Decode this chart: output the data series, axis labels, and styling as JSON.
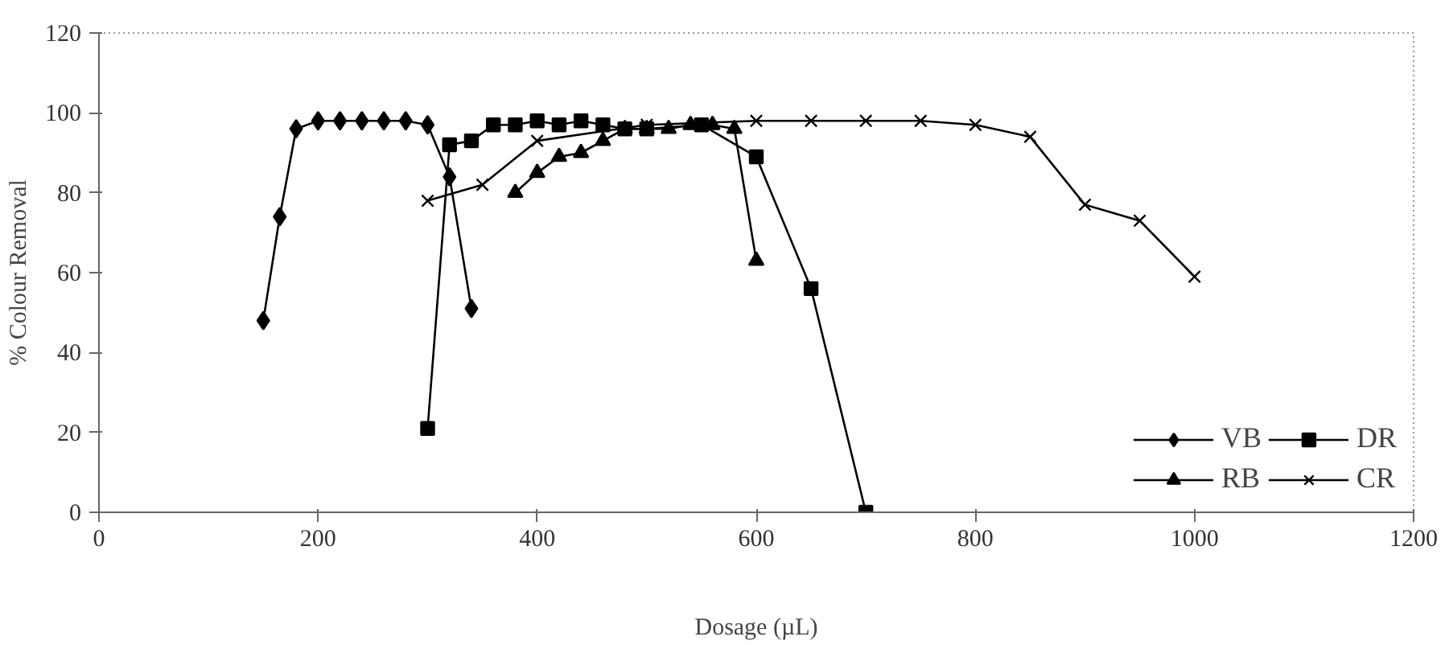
{
  "chart_data": {
    "type": "line",
    "xlabel": "Dosage (µL)",
    "ylabel": "% Colour Removal",
    "xlim": [
      0,
      1200
    ],
    "xticks": [
      0,
      200,
      400,
      600,
      800,
      1000,
      1200
    ],
    "ylim": [
      0,
      120
    ],
    "yticks": [
      0,
      20,
      40,
      60,
      80,
      100,
      120
    ],
    "grid": false,
    "legend": "bottom right",
    "line_style": "solid",
    "series": [
      {
        "name": "VB",
        "color": "#000000",
        "marker": "diamond",
        "x": [
          150,
          165,
          180,
          200,
          220,
          240,
          260,
          280,
          300,
          320,
          340
        ],
        "values": [
          48,
          74,
          96,
          98,
          98,
          98,
          98,
          98,
          97,
          84,
          51
        ]
      },
      {
        "name": "DR",
        "color": "#000000",
        "marker": "square",
        "x": [
          300,
          320,
          340,
          360,
          380,
          400,
          420,
          440,
          460,
          480,
          500,
          550,
          600,
          650,
          700
        ],
        "values": [
          21,
          92,
          93,
          97,
          97,
          98,
          97,
          98,
          97,
          96,
          96,
          97,
          89,
          56,
          0
        ]
      },
      {
        "name": "RB",
        "color": "#000000",
        "marker": "triangle",
        "x": [
          380,
          400,
          420,
          440,
          460,
          480,
          500,
          520,
          540,
          560,
          580,
          600
        ],
        "values": [
          80,
          85,
          89,
          90,
          93,
          96,
          96,
          96,
          97,
          97,
          96,
          63
        ]
      },
      {
        "name": "CR",
        "color": "#000000",
        "marker": "cross",
        "x": [
          300,
          350,
          400,
          500,
          600,
          650,
          700,
          750,
          800,
          850,
          900,
          950,
          1000
        ],
        "values": [
          78,
          82,
          93,
          97,
          98,
          98,
          98,
          98,
          97,
          94,
          77,
          73,
          59
        ]
      }
    ]
  }
}
